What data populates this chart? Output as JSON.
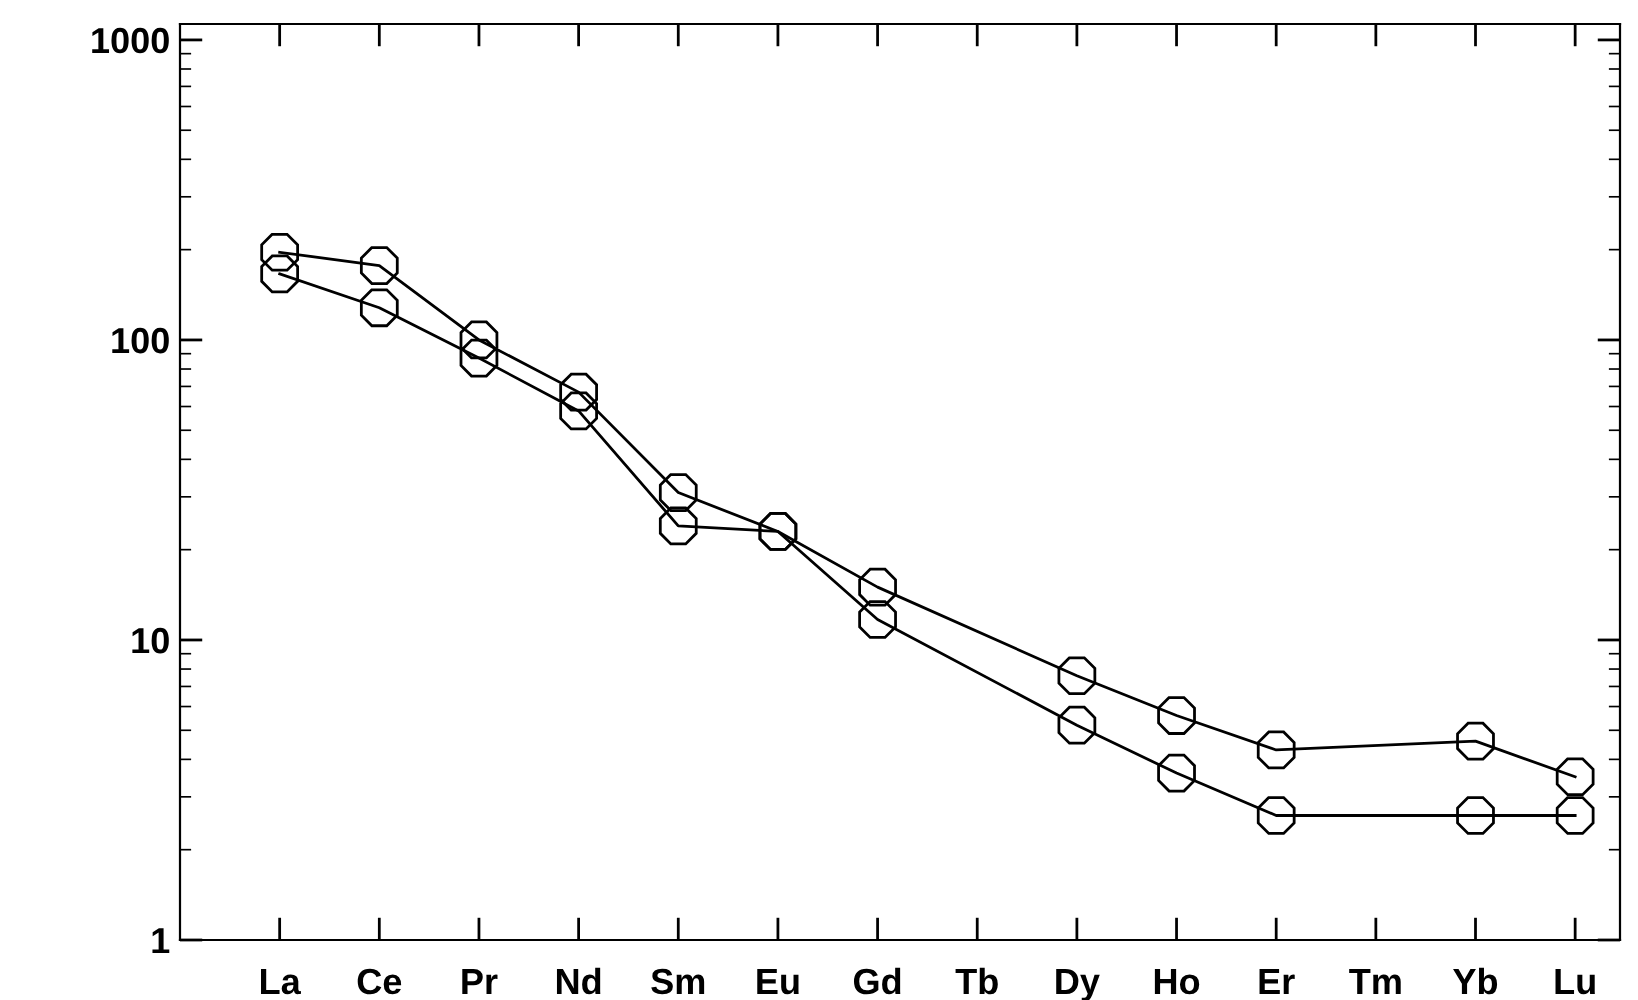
{
  "chart_data": {
    "type": "line",
    "categories": [
      "La",
      "Ce",
      "Pr",
      "Nd",
      "Sm",
      "Eu",
      "Gd",
      "Tb",
      "Dy",
      "Ho",
      "Er",
      "Tm",
      "Yb",
      "Lu"
    ],
    "series": [
      {
        "color": "#000000",
        "values": [
          196,
          177,
          100,
          67,
          31,
          23,
          15,
          null,
          7.6,
          5.6,
          4.3,
          null,
          4.6,
          3.5
        ]
      },
      {
        "color": "#000000",
        "values": [
          166,
          128,
          87,
          58,
          24,
          23,
          11.7,
          null,
          5.2,
          3.6,
          2.6,
          null,
          2.6,
          2.6
        ]
      }
    ],
    "log": true,
    "ylim": [
      1,
      1130
    ],
    "yticks": [
      1,
      10,
      100,
      1000
    ],
    "marker": "circle",
    "line_style": "solid",
    "grid": false
  }
}
